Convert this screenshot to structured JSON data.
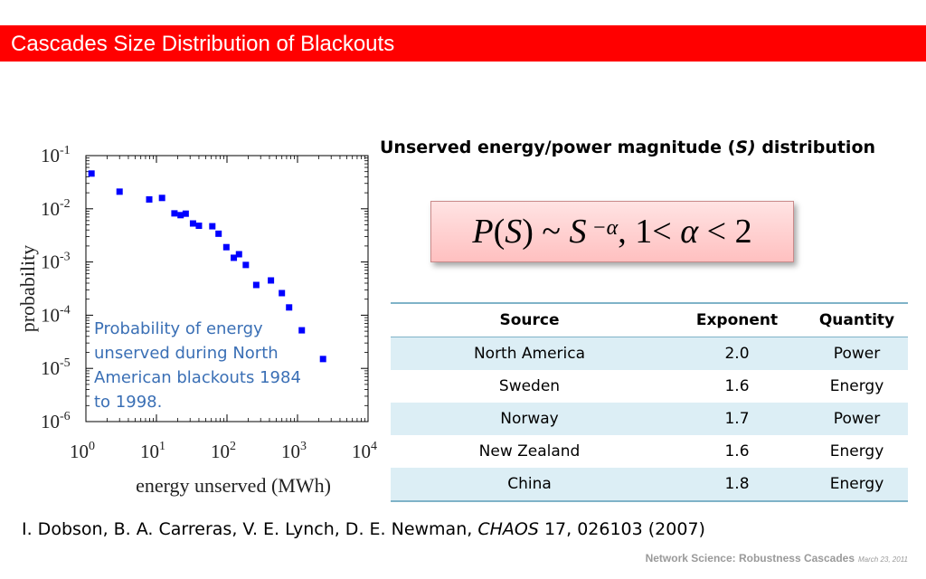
{
  "slide": {
    "title": "Cascades Size Distribution of Blackouts",
    "accent_color": "#ff0000"
  },
  "chart_data": {
    "type": "scatter",
    "title": "",
    "xlabel": "energy unserved (MWh)",
    "ylabel": "probability",
    "xscale": "log",
    "yscale": "log",
    "xlim": [
      1,
      10000
    ],
    "ylim": [
      1e-06,
      0.1
    ],
    "x_ticks": [
      {
        "base": "10",
        "exp": "0"
      },
      {
        "base": "10",
        "exp": "1"
      },
      {
        "base": "10",
        "exp": "2"
      },
      {
        "base": "10",
        "exp": "3"
      },
      {
        "base": "10",
        "exp": "4"
      }
    ],
    "y_ticks": [
      {
        "base": "10",
        "exp": "-1"
      },
      {
        "base": "10",
        "exp": "-2"
      },
      {
        "base": "10",
        "exp": "-3"
      },
      {
        "base": "10",
        "exp": "-4"
      },
      {
        "base": "10",
        "exp": "-5"
      },
      {
        "base": "10",
        "exp": "-6"
      }
    ],
    "grid": false,
    "marker_color": "#0000ff",
    "marker_shape": "square",
    "points": [
      {
        "x": 1.2,
        "y": 0.046
      },
      {
        "x": 3.0,
        "y": 0.021
      },
      {
        "x": 7.9,
        "y": 0.015
      },
      {
        "x": 12,
        "y": 0.016
      },
      {
        "x": 18,
        "y": 0.0082
      },
      {
        "x": 22,
        "y": 0.0076
      },
      {
        "x": 26,
        "y": 0.0081
      },
      {
        "x": 33,
        "y": 0.0053
      },
      {
        "x": 40,
        "y": 0.0048
      },
      {
        "x": 62,
        "y": 0.0047
      },
      {
        "x": 76,
        "y": 0.0034
      },
      {
        "x": 98,
        "y": 0.0019
      },
      {
        "x": 125,
        "y": 0.0012
      },
      {
        "x": 148,
        "y": 0.0014
      },
      {
        "x": 185,
        "y": 0.00088
      },
      {
        "x": 260,
        "y": 0.00037
      },
      {
        "x": 420,
        "y": 0.00045
      },
      {
        "x": 600,
        "y": 0.00026
      },
      {
        "x": 760,
        "y": 0.00014
      },
      {
        "x": 1150,
        "y": 5.2e-05
      },
      {
        "x": 2300,
        "y": 1.5e-05
      }
    ]
  },
  "caption": "Probability of energy unserved during North American blackouts 1984 to 1998.",
  "distribution": {
    "title_prefix": "Unserved energy/power magnitude (",
    "title_var": "S)",
    "title_suffix": " distribution"
  },
  "formula": {
    "p": "P",
    "lparen": "(",
    "s1": "S",
    "rparen_tilde": ") ~ ",
    "s2": "S",
    "exp": " −α",
    "comma": ", 1< ",
    "alpha": "α",
    "lt2": " < 2"
  },
  "table": {
    "headers": [
      "Source",
      "Exponent",
      "Quantity"
    ],
    "rows": [
      [
        "North America",
        "2.0",
        "Power"
      ],
      [
        "Sweden",
        "1.6",
        "Energy"
      ],
      [
        "Norway",
        "1.7",
        "Power"
      ],
      [
        "New Zealand",
        "1.6",
        "Energy"
      ],
      [
        "China",
        "1.8",
        "Energy"
      ]
    ],
    "border_color": "#7fb3c8",
    "shade_color": "#dceef5"
  },
  "citation": {
    "authors": "I. Dobson, B. A. Carreras, V. E. Lynch, D. E. Newman, ",
    "journal": "CHAOS",
    "details": " 17, 026103 (2007)"
  },
  "footer": {
    "text": "Network Science: Robustness Cascades",
    "date": "March 23, 2011"
  }
}
